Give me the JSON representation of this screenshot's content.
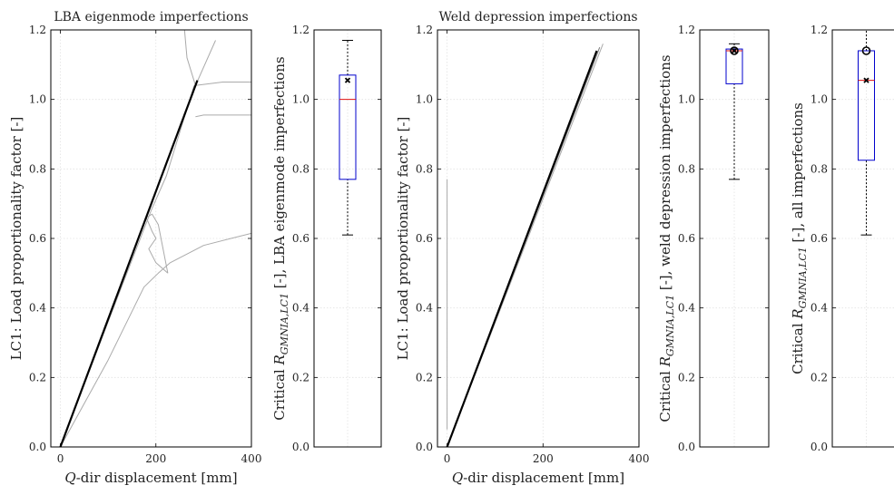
{
  "chart_data": [
    {
      "type": "line",
      "title": "LBA eigenmode imperfections",
      "xlabel": "Q-dir displacement [mm]",
      "ylabel": "LC1: Load proportionality factor [-]",
      "xlim": [
        -20,
        400
      ],
      "ylim": [
        0,
        1.2
      ],
      "xticks": [
        "0",
        "200",
        "400"
      ],
      "yticks": [
        "0.0",
        "0.2",
        "0.4",
        "0.6",
        "0.8",
        "1.0",
        "1.2"
      ],
      "grid": true,
      "series": [
        {
          "color": "#aaaaaa",
          "x": [
            0,
            100,
            175,
            205,
            230,
            300,
            400
          ],
          "y": [
            0,
            0.25,
            0.46,
            0.5,
            0.53,
            0.58,
            0.615
          ]
        },
        {
          "color": "#aaaaaa",
          "x": [
            0,
            100,
            190,
            222,
            280
          ],
          "y": [
            0,
            0.36,
            0.68,
            0.78,
            1.04
          ]
        },
        {
          "color": "#aaaaaa",
          "x": [
            225,
            200,
            185,
            200,
            192,
            180,
            192,
            205,
            225
          ],
          "y": [
            0.5,
            0.53,
            0.57,
            0.6,
            0.62,
            0.66,
            0.67,
            0.64,
            0.5
          ]
        },
        {
          "color": "#aaaaaa",
          "x": [
            283,
            265,
            260
          ],
          "y": [
            1.04,
            1.12,
            1.2
          ]
        },
        {
          "color": "#aaaaaa",
          "x": [
            283,
            325
          ],
          "y": [
            1.04,
            1.17
          ]
        },
        {
          "color": "#aaaaaa",
          "x": [
            283,
            340,
            400
          ],
          "y": [
            1.04,
            1.05,
            1.05
          ]
        },
        {
          "color": "#aaaaaa",
          "x": [
            283,
            300,
            350,
            400
          ],
          "y": [
            0.95,
            0.955,
            0.955,
            0.955
          ]
        },
        {
          "color": "#000000",
          "width": 2.2,
          "x": [
            0,
            287
          ],
          "y": [
            0,
            1.055
          ]
        }
      ]
    },
    {
      "type": "boxplot",
      "ylabel": "Critical R_GMNIA,LC1 [-], LBA eigenmode imperfections",
      "ylim": [
        0,
        1.2
      ],
      "yticks": [
        "0.0",
        "0.2",
        "0.4",
        "0.6",
        "0.8",
        "1.0",
        "1.2"
      ],
      "grid": true,
      "box": {
        "whisker_low": 0.61,
        "q1": 0.77,
        "median": 1.0,
        "q3": 1.07,
        "whisker_high": 1.17,
        "mean": 1.055,
        "outliers": []
      }
    },
    {
      "type": "line",
      "title": "Weld depression imperfections",
      "xlabel": "Q-dir displacement [mm]",
      "ylabel": "LC1: Load proportionality factor [-]",
      "xlim": [
        -20,
        400
      ],
      "ylim": [
        0,
        1.2
      ],
      "xticks": [
        "0",
        "200",
        "400"
      ],
      "yticks": [
        "0.0",
        "0.2",
        "0.4",
        "0.6",
        "0.8",
        "1.0",
        "1.2"
      ],
      "grid": true,
      "series": [
        {
          "color": "#aaaaaa",
          "x": [
            0,
            0
          ],
          "y": [
            0.05,
            0.77
          ]
        },
        {
          "color": "#aaaaaa",
          "x": [
            0,
            325
          ],
          "y": [
            0,
            1.16
          ]
        },
        {
          "color": "#777777",
          "x": [
            0,
            318
          ],
          "y": [
            0,
            1.15
          ]
        },
        {
          "color": "#000000",
          "width": 2.2,
          "x": [
            0,
            312
          ],
          "y": [
            0,
            1.14
          ]
        }
      ]
    },
    {
      "type": "boxplot",
      "ylabel": "Critical R_GMNIA,LC1 [-], weld depression imperfections",
      "ylim": [
        0,
        1.2
      ],
      "yticks": [
        "0.0",
        "0.2",
        "0.4",
        "0.6",
        "0.8",
        "1.0",
        "1.2"
      ],
      "grid": true,
      "box": {
        "whisker_low": 0.77,
        "q1": 1.045,
        "median": 1.14,
        "q3": 1.145,
        "whisker_high": 1.16,
        "mean": 1.14,
        "outliers": [
          1.14
        ]
      }
    },
    {
      "type": "boxplot",
      "ylabel": "Critical R_GMNIA,LC1 [-], all imperfections",
      "ylim": [
        0,
        1.2
      ],
      "yticks": [
        "0.0",
        "0.2",
        "0.4",
        "0.6",
        "0.8",
        "1.0",
        "1.2"
      ],
      "grid": true,
      "box": {
        "whisker_low": 0.61,
        "q1": 0.825,
        "median": 1.055,
        "q3": 1.14,
        "whisker_high": 1.2,
        "mean": 1.055,
        "outliers": [
          1.14
        ]
      }
    }
  ]
}
